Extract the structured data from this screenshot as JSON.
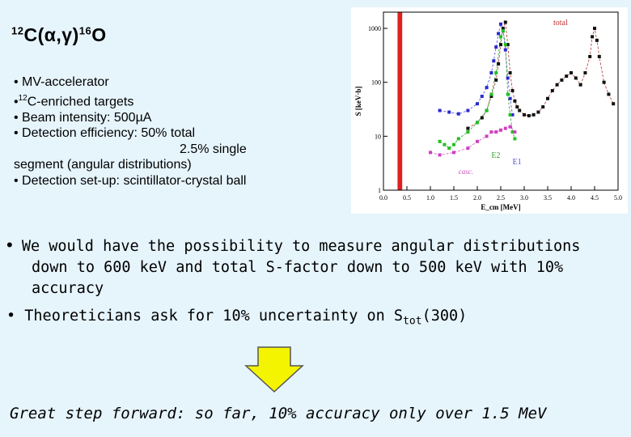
{
  "title": {
    "mass_c": "12",
    "main_c": "C(",
    "alpha": "α",
    "comma": ",",
    "gamma": "γ",
    "close": ")",
    "mass_o": "16",
    "main_o": "O"
  },
  "bullets": {
    "b1": "• MV-accelerator",
    "b2_dot": "•",
    "b2_mass": "12",
    "b2_text": "C-enriched targets",
    "b3": "• Beam intensity: 500µA",
    "b4": "• Detection efficiency: 50% total",
    "b5": "2.5% single",
    "b6": "segment (angular distributions)",
    "b7": "• Detection set-up: scintillator-crystal ball"
  },
  "statement": {
    "dot": "•",
    "line1": "We would have the possibility to measure angular distributions",
    "line2": "down to 600 keV and total S-factor down to 500 keV with 10%",
    "line3": "accuracy"
  },
  "theory": {
    "text": "• Theoreticians ask for 10% uncertainty on S",
    "sub": "tot",
    "tail": "(300)"
  },
  "conclusion": "Great step forward: so far, 10% accuracy only over 1.5 MeV",
  "colors": {
    "background": "#e6f4fc",
    "arrow_fill": "#f4f400",
    "highlight_bar": "#e02020",
    "total_curve": "#b03030",
    "e1_curve": "#5050d0",
    "e2_curve": "#30a030",
    "cascade_curve": "#d050c0"
  },
  "chart_data": {
    "type": "scatter",
    "title": "",
    "xlabel": "E_cm [MeV]",
    "ylabel": "S [keV·b]",
    "yscale": "log",
    "xlim": [
      0.0,
      5.0
    ],
    "ylim": [
      1,
      2000
    ],
    "x_ticks": [
      "0.0",
      "0.5",
      "1.0",
      "1.5",
      "2.0",
      "2.5",
      "3.0",
      "3.5",
      "4.0",
      "4.5",
      "5.0"
    ],
    "y_ticks": [
      "1000",
      "100",
      "10",
      "1"
    ],
    "curve_labels": {
      "total": "total",
      "e2": "E2",
      "e1": "E1",
      "cascade": "casc."
    },
    "highlight_region": [
      0.3,
      0.4
    ],
    "series": [
      {
        "name": "total",
        "x": [
          1.8,
          2.0,
          2.1,
          2.2,
          2.3,
          2.4,
          2.45,
          2.5,
          2.55,
          2.6,
          2.65,
          2.7,
          2.75,
          2.8,
          2.85,
          2.9,
          3.0,
          3.1,
          3.2,
          3.3,
          3.4,
          3.5,
          3.6,
          3.7,
          3.8,
          3.9,
          4.0,
          4.1,
          4.2,
          4.3,
          4.4,
          4.45,
          4.5,
          4.55,
          4.6,
          4.7,
          4.8,
          4.9
        ],
        "y": [
          14,
          18,
          22,
          30,
          55,
          110,
          220,
          500,
          1000,
          1300,
          500,
          150,
          70,
          45,
          35,
          30,
          25,
          24,
          25,
          28,
          35,
          50,
          70,
          90,
          110,
          130,
          150,
          120,
          90,
          150,
          300,
          700,
          1000,
          600,
          300,
          100,
          60,
          40
        ]
      },
      {
        "name": "E1",
        "x": [
          1.2,
          1.4,
          1.6,
          1.8,
          2.0,
          2.1,
          2.2,
          2.3,
          2.35,
          2.4,
          2.45,
          2.5,
          2.55,
          2.6,
          2.65,
          2.7,
          2.75
        ],
        "y": [
          30,
          28,
          26,
          30,
          40,
          55,
          80,
          150,
          250,
          450,
          800,
          1200,
          900,
          400,
          120,
          50,
          25
        ]
      },
      {
        "name": "E2",
        "x": [
          1.2,
          1.3,
          1.4,
          1.5,
          1.6,
          1.8,
          2.0,
          2.2,
          2.3,
          2.4,
          2.5,
          2.55,
          2.6,
          2.65,
          2.7,
          2.75,
          2.8
        ],
        "y": [
          8,
          7,
          6,
          7,
          9,
          12,
          18,
          30,
          60,
          150,
          700,
          900,
          500,
          60,
          25,
          12,
          9
        ]
      },
      {
        "name": "cascade",
        "x": [
          1.0,
          1.2,
          1.5,
          1.8,
          2.0,
          2.2,
          2.3,
          2.4,
          2.5,
          2.6,
          2.7,
          2.8
        ],
        "y": [
          5,
          4.5,
          5,
          6,
          8,
          10,
          12,
          12,
          13,
          14,
          15,
          12
        ]
      }
    ]
  }
}
